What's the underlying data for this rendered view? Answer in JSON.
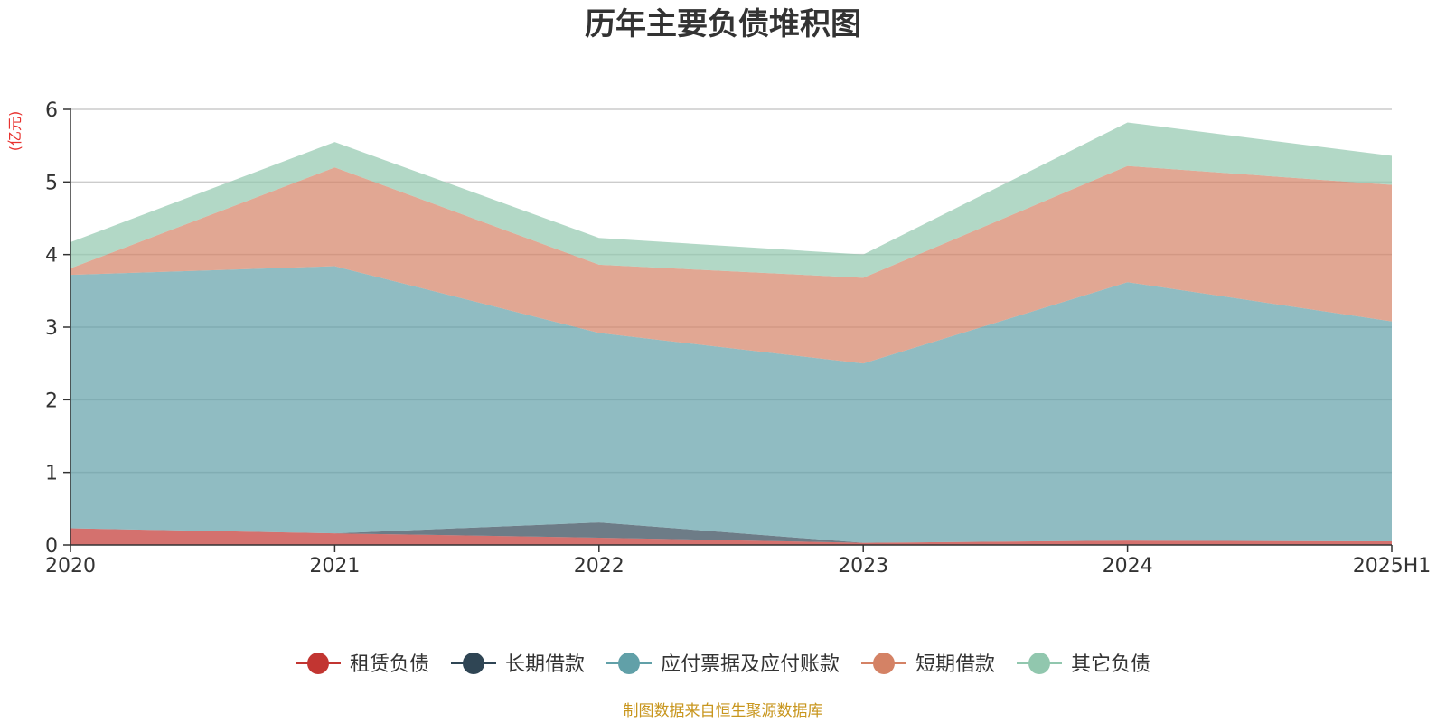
{
  "chart_data": {
    "type": "area",
    "title": "历年主要负债堆积图",
    "ylabel": "(亿元)",
    "xlabel": "",
    "categories": [
      "2020",
      "2021",
      "2022",
      "2023",
      "2024",
      "2025H1"
    ],
    "ylim": [
      0,
      6
    ],
    "yticks": [
      "0",
      "1",
      "2",
      "3",
      "4",
      "5",
      "6"
    ],
    "stacked": true,
    "grid": true,
    "legend_position": "bottom",
    "series": [
      {
        "name": "租赁负债",
        "color": "#c23531",
        "values": [
          0.23,
          0.16,
          0.1,
          0.03,
          0.06,
          0.05
        ]
      },
      {
        "name": "长期借款",
        "color": "#2f4554",
        "values": [
          0.0,
          0.0,
          0.21,
          0.0,
          0.0,
          0.0
        ]
      },
      {
        "name": "应付票据及应付账款",
        "color": "#61a0a8",
        "values": [
          3.49,
          3.68,
          2.61,
          2.47,
          3.56,
          3.03
        ]
      },
      {
        "name": "短期借款",
        "color": "#d48265",
        "values": [
          0.09,
          1.36,
          0.94,
          1.18,
          1.6,
          1.88
        ]
      },
      {
        "name": "其它负债",
        "color": "#91c7ae",
        "values": [
          0.36,
          0.35,
          0.37,
          0.32,
          0.6,
          0.4
        ]
      }
    ]
  },
  "footer": {
    "source": "制图数据来自恒生聚源数据库"
  }
}
